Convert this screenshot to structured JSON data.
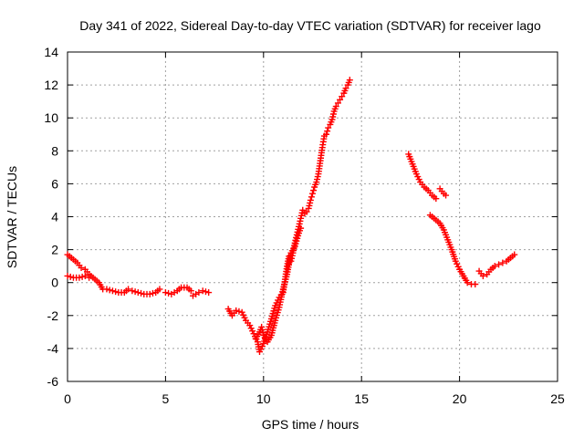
{
  "chart_data": {
    "type": "scatter",
    "title": "Day 341 of 2022, Sidereal Day-to-day VTEC variation (SDTVAR) for receiver lago",
    "xlabel": "GPS time / hours",
    "ylabel": "SDTVAR / TECUs",
    "xlim": [
      0,
      25
    ],
    "ylim": [
      -6,
      14
    ],
    "xticks": [
      "0",
      "5",
      "10",
      "15",
      "20",
      "25"
    ],
    "yticks": [
      "-6",
      "-4",
      "-2",
      "0",
      "2",
      "4",
      "6",
      "8",
      "10",
      "12",
      "14"
    ],
    "grid": true,
    "marker": "+",
    "color": "#ff0000",
    "series": [
      {
        "name": "trace-1",
        "points": [
          [
            0.0,
            1.7
          ],
          [
            0.3,
            1.4
          ],
          [
            0.5,
            1.2
          ],
          [
            0.7,
            0.9
          ],
          [
            0.9,
            0.8
          ],
          [
            1.1,
            0.5
          ],
          [
            1.3,
            0.3
          ],
          [
            1.6,
            0.0
          ],
          [
            1.8,
            -0.4
          ],
          [
            2.0,
            -0.4
          ],
          [
            2.3,
            -0.5
          ],
          [
            2.6,
            -0.6
          ],
          [
            2.9,
            -0.6
          ],
          [
            3.1,
            -0.4
          ],
          [
            3.3,
            -0.5
          ],
          [
            3.6,
            -0.6
          ],
          [
            3.9,
            -0.7
          ],
          [
            4.2,
            -0.7
          ],
          [
            4.5,
            -0.6
          ],
          [
            4.7,
            -0.4
          ]
        ]
      },
      {
        "name": "trace-2",
        "points": [
          [
            0.0,
            0.4
          ],
          [
            0.3,
            0.3
          ],
          [
            0.6,
            0.3
          ],
          [
            0.9,
            0.4
          ],
          [
            1.1,
            0.3
          ]
        ]
      },
      {
        "name": "trace-3",
        "points": [
          [
            5.0,
            -0.6
          ],
          [
            5.3,
            -0.7
          ],
          [
            5.6,
            -0.5
          ],
          [
            5.8,
            -0.3
          ],
          [
            6.1,
            -0.3
          ],
          [
            6.3,
            -0.5
          ]
        ]
      },
      {
        "name": "trace-4",
        "points": [
          [
            6.4,
            -0.8
          ],
          [
            6.7,
            -0.6
          ],
          [
            6.9,
            -0.5
          ],
          [
            7.2,
            -0.6
          ]
        ]
      },
      {
        "name": "trace-5",
        "points": [
          [
            8.2,
            -1.6
          ],
          [
            8.4,
            -2.0
          ],
          [
            8.6,
            -1.7
          ],
          [
            8.9,
            -1.8
          ],
          [
            9.1,
            -2.3
          ],
          [
            9.3,
            -2.6
          ],
          [
            9.5,
            -3.1
          ],
          [
            9.7,
            -3.6
          ],
          [
            9.8,
            -4.2
          ],
          [
            10.0,
            -3.7
          ],
          [
            10.2,
            -3.0
          ],
          [
            10.4,
            -2.2
          ],
          [
            10.6,
            -1.4
          ],
          [
            10.8,
            -0.9
          ],
          [
            11.0,
            -0.6
          ],
          [
            11.1,
            0.2
          ],
          [
            11.2,
            1.0
          ],
          [
            11.3,
            1.6
          ],
          [
            11.4,
            1.3
          ],
          [
            11.5,
            1.8
          ],
          [
            11.6,
            2.4
          ],
          [
            11.7,
            2.9
          ],
          [
            11.8,
            3.4
          ],
          [
            11.9,
            3.9
          ],
          [
            12.0,
            4.4
          ],
          [
            12.1,
            4.2
          ],
          [
            12.2,
            4.3
          ],
          [
            12.3,
            4.5
          ],
          [
            12.4,
            5.0
          ],
          [
            12.5,
            5.4
          ],
          [
            12.6,
            5.8
          ],
          [
            12.7,
            6.1
          ],
          [
            12.8,
            6.6
          ],
          [
            12.9,
            7.4
          ],
          [
            13.0,
            8.2
          ],
          [
            13.1,
            8.9
          ],
          [
            13.2,
            9.0
          ],
          [
            13.3,
            9.4
          ],
          [
            13.4,
            9.6
          ],
          [
            13.5,
            9.9
          ],
          [
            13.6,
            10.4
          ],
          [
            13.7,
            10.7
          ],
          [
            13.8,
            10.9
          ],
          [
            13.9,
            11.1
          ],
          [
            14.0,
            11.3
          ],
          [
            14.1,
            11.5
          ],
          [
            14.2,
            11.8
          ],
          [
            14.3,
            12.0
          ],
          [
            14.4,
            12.3
          ]
        ]
      },
      {
        "name": "trace-6",
        "points": [
          [
            9.6,
            -3.4
          ],
          [
            9.8,
            -3.0
          ],
          [
            9.9,
            -2.7
          ],
          [
            10.0,
            -3.2
          ],
          [
            10.2,
            -3.6
          ],
          [
            10.4,
            -3.2
          ],
          [
            10.6,
            -2.3
          ],
          [
            10.8,
            -1.5
          ],
          [
            11.0,
            -0.4
          ],
          [
            11.2,
            0.5
          ],
          [
            11.4,
            1.8
          ],
          [
            11.6,
            2.2
          ],
          [
            11.8,
            3.0
          ],
          [
            11.9,
            3.3
          ]
        ]
      },
      {
        "name": "trace-7",
        "points": [
          [
            17.4,
            7.8
          ],
          [
            17.6,
            7.2
          ],
          [
            17.8,
            6.6
          ],
          [
            18.0,
            6.1
          ],
          [
            18.2,
            5.8
          ],
          [
            18.4,
            5.6
          ],
          [
            18.6,
            5.3
          ],
          [
            18.8,
            5.1
          ]
        ]
      },
      {
        "name": "trace-8",
        "points": [
          [
            19.0,
            5.7
          ],
          [
            19.2,
            5.4
          ],
          [
            19.3,
            5.3
          ]
        ]
      },
      {
        "name": "trace-9",
        "points": [
          [
            18.5,
            4.1
          ],
          [
            18.8,
            3.8
          ],
          [
            19.0,
            3.6
          ],
          [
            19.2,
            3.2
          ],
          [
            19.4,
            2.6
          ],
          [
            19.6,
            2.0
          ],
          [
            19.8,
            1.3
          ],
          [
            20.0,
            0.8
          ],
          [
            20.2,
            0.4
          ],
          [
            20.4,
            0.0
          ],
          [
            20.6,
            -0.1
          ],
          [
            20.8,
            -0.1
          ]
        ]
      },
      {
        "name": "trace-10",
        "points": [
          [
            21.0,
            0.7
          ],
          [
            21.2,
            0.4
          ],
          [
            21.4,
            0.5
          ],
          [
            21.6,
            0.8
          ],
          [
            21.8,
            1.0
          ],
          [
            22.0,
            1.1
          ],
          [
            22.2,
            1.2
          ],
          [
            22.4,
            1.3
          ],
          [
            22.6,
            1.5
          ],
          [
            22.8,
            1.7
          ]
        ]
      }
    ]
  }
}
